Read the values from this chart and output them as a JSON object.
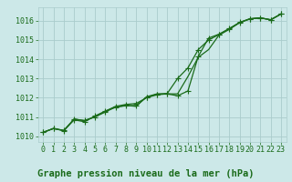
{
  "bg_color": "#cce8e8",
  "grid_color": "#aacccc",
  "line_color": "#1a6b1a",
  "xlim": [
    -0.5,
    23.5
  ],
  "ylim": [
    1009.7,
    1016.7
  ],
  "yticks": [
    1010,
    1011,
    1012,
    1013,
    1014,
    1015,
    1016
  ],
  "xticks": [
    0,
    1,
    2,
    3,
    4,
    5,
    6,
    7,
    8,
    9,
    10,
    11,
    12,
    13,
    14,
    15,
    16,
    17,
    18,
    19,
    20,
    21,
    22,
    23
  ],
  "series1_x": [
    0,
    1,
    2,
    3,
    4,
    5,
    6,
    7,
    8,
    9,
    10,
    11,
    12,
    13,
    14,
    15,
    16,
    17,
    18,
    19,
    20,
    21,
    22,
    23
  ],
  "series1_y": [
    1010.2,
    1010.4,
    1010.3,
    1010.9,
    1010.8,
    1011.0,
    1011.3,
    1011.5,
    1011.6,
    1011.55,
    1012.05,
    1012.2,
    1012.2,
    1012.2,
    1013.1,
    1014.1,
    1014.5,
    1015.25,
    1015.55,
    1015.9,
    1016.1,
    1016.15,
    1016.05,
    1016.35
  ],
  "series2_x": [
    0,
    1,
    2,
    3,
    4,
    5,
    6,
    7,
    8,
    9,
    10,
    11,
    12,
    13,
    14,
    15,
    16,
    17,
    18,
    19,
    20,
    21,
    22,
    23
  ],
  "series2_y": [
    1010.2,
    1010.4,
    1010.3,
    1010.85,
    1010.75,
    1011.05,
    1011.3,
    1011.55,
    1011.65,
    1011.7,
    1012.0,
    1012.15,
    1012.2,
    1012.1,
    1012.35,
    1014.15,
    1015.1,
    1015.3,
    1015.6,
    1015.9,
    1016.1,
    1016.15,
    1016.05,
    1016.35
  ],
  "series3_x": [
    0,
    1,
    2,
    3,
    4,
    5,
    6,
    7,
    8,
    9,
    10,
    11,
    12,
    13,
    14,
    15,
    16,
    17,
    18,
    19,
    20,
    21,
    22,
    23
  ],
  "series3_y": [
    1010.2,
    1010.4,
    1010.28,
    1010.88,
    1010.82,
    1011.0,
    1011.25,
    1011.52,
    1011.58,
    1011.6,
    1012.02,
    1012.18,
    1012.22,
    1013.0,
    1013.55,
    1014.5,
    1015.0,
    1015.28,
    1015.58,
    1015.92,
    1016.1,
    1016.15,
    1016.05,
    1016.35
  ],
  "title": "Graphe pression niveau de la mer (hPa)",
  "title_fontsize": 7.5,
  "tick_fontsize": 6.0,
  "marker_size": 2.5,
  "linewidth": 0.9
}
